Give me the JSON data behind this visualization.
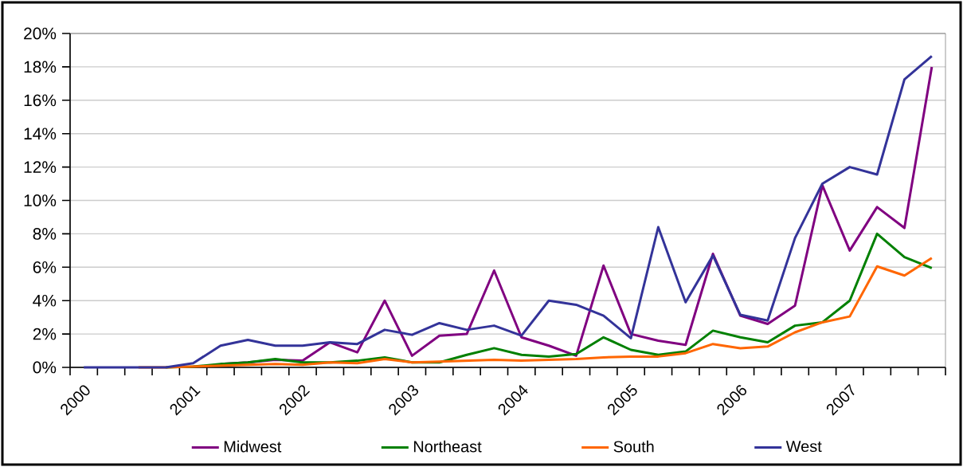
{
  "chart_data": {
    "type": "line",
    "categories": [
      "2000",
      null,
      null,
      null,
      "2001",
      null,
      null,
      null,
      "2002",
      null,
      null,
      null,
      "2003",
      null,
      null,
      null,
      "2004",
      null,
      null,
      null,
      "2005",
      null,
      null,
      null,
      "2006",
      null,
      null,
      null,
      "2007",
      null,
      null,
      null
    ],
    "ylim": [
      0,
      20
    ],
    "yticks": [
      {
        "value": 0,
        "label": "0%"
      },
      {
        "value": 2,
        "label": "2%"
      },
      {
        "value": 4,
        "label": "4%"
      },
      {
        "value": 6,
        "label": "6%"
      },
      {
        "value": 8,
        "label": "8%"
      },
      {
        "value": 10,
        "label": "10%"
      },
      {
        "value": 12,
        "label": "12%"
      },
      {
        "value": 14,
        "label": "14%"
      },
      {
        "value": 16,
        "label": "16%"
      },
      {
        "value": 18,
        "label": "18%"
      },
      {
        "value": 20,
        "label": "20%"
      }
    ],
    "grid": "y",
    "legend": "bottom",
    "series": [
      {
        "name": "Midwest",
        "color": "#800080",
        "values": [
          null,
          null,
          null,
          null,
          null,
          0.2,
          0.3,
          0.45,
          0.4,
          1.5,
          0.9,
          4.0,
          0.7,
          1.9,
          2.0,
          5.8,
          1.8,
          1.3,
          0.7,
          6.1,
          2.0,
          1.6,
          1.35,
          6.8,
          3.1,
          2.6,
          3.7,
          10.9,
          7.0,
          9.6,
          8.35,
          18.0
        ]
      },
      {
        "name": "Northeast",
        "color": "#008000",
        "values": [
          null,
          null,
          null,
          0,
          0.05,
          0.2,
          0.3,
          0.5,
          0.3,
          0.3,
          0.4,
          0.6,
          0.3,
          0.3,
          0.75,
          1.15,
          0.75,
          0.65,
          0.8,
          1.8,
          1.05,
          0.75,
          0.95,
          2.2,
          1.8,
          1.5,
          2.5,
          2.7,
          4.0,
          8.0,
          6.6,
          5.95
        ]
      },
      {
        "name": "South",
        "color": "#ff6600",
        "values": [
          null,
          null,
          0,
          0,
          0.05,
          0.1,
          0.15,
          0.2,
          0.15,
          0.3,
          0.25,
          0.5,
          0.3,
          0.35,
          0.4,
          0.45,
          0.4,
          0.45,
          0.5,
          0.6,
          0.65,
          0.65,
          0.85,
          1.4,
          1.15,
          1.25,
          2.1,
          2.7,
          3.05,
          6.05,
          5.5,
          6.55
        ]
      },
      {
        "name": "West",
        "color": "#333399",
        "values": [
          0,
          0,
          0,
          0,
          0.25,
          1.3,
          1.65,
          1.3,
          1.3,
          1.5,
          1.4,
          2.25,
          1.95,
          2.65,
          2.25,
          2.5,
          1.9,
          4.0,
          3.75,
          3.1,
          1.75,
          8.4,
          3.9,
          6.7,
          3.15,
          2.8,
          7.75,
          11.0,
          12.0,
          11.55,
          17.25,
          18.65
        ]
      }
    ]
  }
}
